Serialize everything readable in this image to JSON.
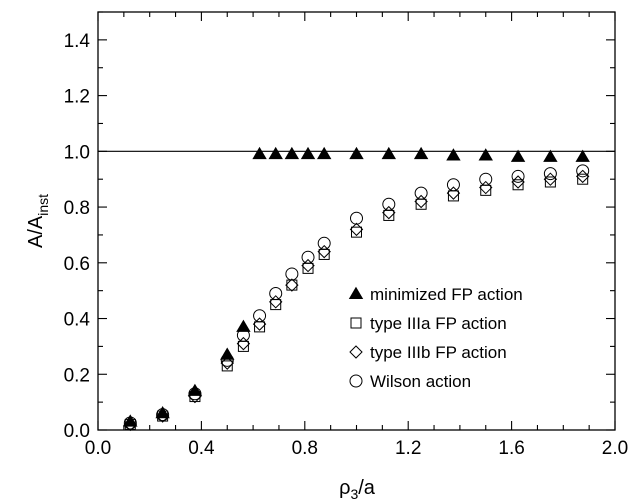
{
  "chart_data": {
    "type": "scatter",
    "xlabel": "ρ₃/a",
    "xlabel_main": "ρ",
    "xlabel_sub": "3",
    "xlabel_rest": "/a",
    "ylabel": "A/Ainst",
    "ylabel_main": "A/A",
    "ylabel_sub": "inst",
    "xlim": [
      0.0,
      2.0
    ],
    "ylim": [
      0.0,
      1.5
    ],
    "xticks": [
      "0.0",
      "0.4",
      "0.8",
      "1.2",
      "1.6",
      "2.0"
    ],
    "xtick_values": [
      0.0,
      0.4,
      0.8,
      1.2,
      1.6,
      2.0
    ],
    "yticks": [
      "0.0",
      "0.2",
      "0.4",
      "0.6",
      "0.8",
      "1.0",
      "1.2",
      "1.4"
    ],
    "ytick_values": [
      0.0,
      0.2,
      0.4,
      0.6,
      0.8,
      1.0,
      1.2,
      1.4
    ],
    "grid": false,
    "legend_position": "lower-right",
    "reference_line": {
      "y": 1.0
    },
    "series": [
      {
        "name": "minimized FP action",
        "marker": "filled-triangle",
        "x": [
          0.125,
          0.25,
          0.375,
          0.5,
          0.5625,
          0.625,
          0.6875,
          0.75,
          0.8125,
          0.875,
          1.0,
          1.125,
          1.25,
          1.375,
          1.5,
          1.625,
          1.75,
          1.875
        ],
        "y": [
          0.03,
          0.06,
          0.14,
          0.27,
          0.37,
          0.99,
          0.99,
          0.99,
          0.99,
          0.99,
          0.99,
          0.99,
          0.99,
          0.985,
          0.985,
          0.98,
          0.98,
          0.98
        ]
      },
      {
        "name": "type IIIa FP action",
        "marker": "open-square",
        "x": [
          0.125,
          0.25,
          0.375,
          0.5,
          0.5625,
          0.625,
          0.6875,
          0.75,
          0.8125,
          0.875,
          1.0,
          1.125,
          1.25,
          1.375,
          1.5,
          1.625,
          1.75,
          1.875
        ],
        "y": [
          0.02,
          0.05,
          0.12,
          0.23,
          0.3,
          0.37,
          0.45,
          0.52,
          0.58,
          0.63,
          0.71,
          0.77,
          0.81,
          0.84,
          0.86,
          0.88,
          0.89,
          0.9
        ]
      },
      {
        "name": "type IIIb FP action",
        "marker": "open-diamond",
        "x": [
          0.125,
          0.25,
          0.375,
          0.5,
          0.5625,
          0.625,
          0.6875,
          0.75,
          0.8125,
          0.875,
          1.0,
          1.125,
          1.25,
          1.375,
          1.5,
          1.625,
          1.75,
          1.875
        ],
        "y": [
          0.02,
          0.05,
          0.12,
          0.24,
          0.31,
          0.38,
          0.46,
          0.52,
          0.59,
          0.64,
          0.72,
          0.78,
          0.82,
          0.85,
          0.87,
          0.89,
          0.9,
          0.91
        ]
      },
      {
        "name": "Wilson action",
        "marker": "open-circle",
        "x": [
          0.125,
          0.25,
          0.375,
          0.5,
          0.5625,
          0.625,
          0.6875,
          0.75,
          0.8125,
          0.875,
          1.0,
          1.125,
          1.25,
          1.375,
          1.5,
          1.625,
          1.75,
          1.875
        ],
        "y": [
          0.025,
          0.055,
          0.13,
          0.25,
          0.34,
          0.41,
          0.49,
          0.56,
          0.62,
          0.67,
          0.76,
          0.81,
          0.85,
          0.88,
          0.9,
          0.91,
          0.92,
          0.93
        ]
      }
    ]
  }
}
